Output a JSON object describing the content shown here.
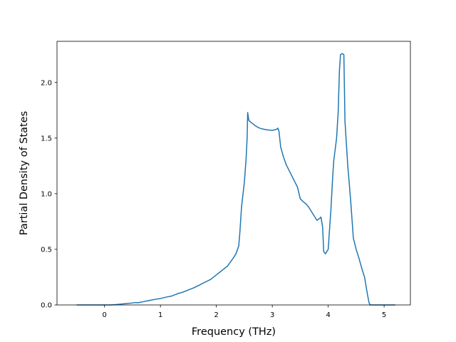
{
  "chart_data": {
    "type": "line",
    "title": "",
    "xlabel": "Frequency (THz)",
    "ylabel": "Partial Density of States",
    "xlim": [
      -0.85,
      5.47
    ],
    "ylim": [
      0.0,
      2.37
    ],
    "xticks": [
      0,
      1,
      2,
      3,
      4,
      5
    ],
    "xtick_labels": [
      "0",
      "1",
      "2",
      "3",
      "4",
      "5"
    ],
    "yticks": [
      0.0,
      0.5,
      1.0,
      1.5,
      2.0
    ],
    "ytick_labels": [
      "0.0",
      "0.5",
      "1.0",
      "1.5",
      "2.0"
    ],
    "grid": false,
    "legend": "none",
    "series": [
      {
        "color": "#1f77b4",
        "x": [
          -0.5,
          -0.3,
          0.0,
          0.1,
          0.2,
          0.3,
          0.4,
          0.5,
          0.55,
          0.6,
          0.7,
          0.8,
          0.9,
          1.0,
          1.1,
          1.2,
          1.25,
          1.3,
          1.4,
          1.5,
          1.6,
          1.7,
          1.8,
          1.9,
          2.0,
          2.1,
          2.2,
          2.3,
          2.35,
          2.4,
          2.42,
          2.45,
          2.5,
          2.53,
          2.55,
          2.56,
          2.58,
          2.6,
          2.65,
          2.7,
          2.75,
          2.8,
          2.85,
          2.9,
          2.95,
          3.0,
          3.05,
          3.08,
          3.1,
          3.12,
          3.15,
          3.2,
          3.25,
          3.3,
          3.35,
          3.4,
          3.45,
          3.5,
          3.55,
          3.6,
          3.65,
          3.7,
          3.75,
          3.8,
          3.85,
          3.87,
          3.9,
          3.92,
          3.95,
          4.0,
          4.02,
          4.05,
          4.08,
          4.1,
          4.15,
          4.18,
          4.2,
          4.22,
          4.25,
          4.28,
          4.3,
          4.35,
          4.4,
          4.45,
          4.5,
          4.55,
          4.6,
          4.65,
          4.7,
          4.73,
          4.75,
          4.8,
          5.0,
          5.2
        ],
        "y": [
          0.0,
          0.0,
          0.0,
          0.0,
          0.003,
          0.008,
          0.013,
          0.018,
          0.022,
          0.02,
          0.03,
          0.04,
          0.05,
          0.058,
          0.07,
          0.08,
          0.09,
          0.1,
          0.115,
          0.135,
          0.155,
          0.18,
          0.205,
          0.23,
          0.27,
          0.31,
          0.35,
          0.42,
          0.46,
          0.53,
          0.65,
          0.88,
          1.1,
          1.3,
          1.5,
          1.73,
          1.66,
          1.65,
          1.63,
          1.61,
          1.595,
          1.585,
          1.58,
          1.575,
          1.572,
          1.57,
          1.575,
          1.58,
          1.59,
          1.56,
          1.42,
          1.33,
          1.26,
          1.21,
          1.16,
          1.11,
          1.06,
          0.955,
          0.93,
          0.91,
          0.88,
          0.84,
          0.8,
          0.76,
          0.78,
          0.79,
          0.7,
          0.48,
          0.46,
          0.5,
          0.65,
          0.87,
          1.15,
          1.3,
          1.5,
          1.75,
          2.1,
          2.25,
          2.26,
          2.25,
          1.65,
          1.25,
          0.95,
          0.6,
          0.5,
          0.42,
          0.33,
          0.25,
          0.1,
          0.02,
          0.0,
          0.0,
          0.0,
          0.0
        ]
      }
    ]
  }
}
